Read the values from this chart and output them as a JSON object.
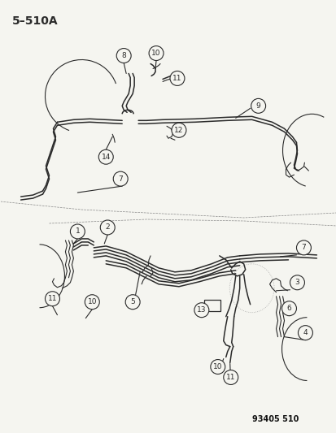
{
  "title": "5–510A",
  "part_number": "93405 510",
  "bg_color": "#f5f5f0",
  "line_color": "#2a2a2a",
  "figsize": [
    4.14,
    5.33
  ],
  "dpi": 100,
  "title_fontsize": 10,
  "label_fontsize": 6.5
}
